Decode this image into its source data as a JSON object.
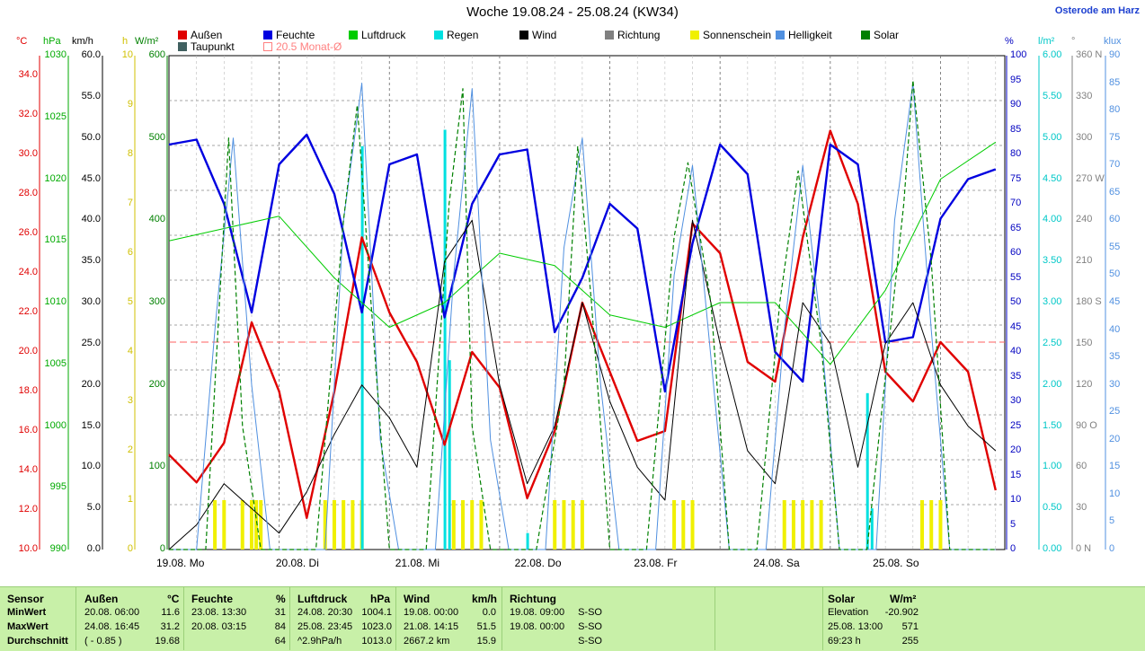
{
  "title": "Woche 19.08.24 - 25.08.24 (KW34)",
  "station": "Osterode am Harz",
  "legend": [
    {
      "label": "Außen",
      "color": "#e00000"
    },
    {
      "label": "Feuchte",
      "color": "#0000e0"
    },
    {
      "label": "Luftdruck",
      "color": "#00cc00"
    },
    {
      "label": "Regen",
      "color": "#00e0e0"
    },
    {
      "label": "Wind",
      "color": "#000000"
    },
    {
      "label": "Richtung",
      "color": "#808080"
    },
    {
      "label": "Sonnenschein",
      "color": "#f0f000"
    },
    {
      "label": "Helligkeit",
      "color": "#5090e0"
    },
    {
      "label": "Solar",
      "color": "#008000"
    },
    {
      "label": "Taupunkt",
      "color": "#406060"
    },
    {
      "label": "20.5 Monat-Ø",
      "color": "#ff8080"
    }
  ],
  "axes_units": {
    "temp": "°C",
    "pressure": "hPa",
    "wind": "km/h",
    "sun": "h",
    "solar": "W/m²",
    "humidity": "%",
    "rain": "l/m²",
    "dir": "°",
    "lux": "klux"
  },
  "axes_ticks": {
    "temp": [
      "34.0",
      "32.0",
      "30.0",
      "28.0",
      "26.0",
      "24.0",
      "22.0",
      "20.0",
      "18.0",
      "16.0",
      "14.0",
      "12.0",
      "10.0"
    ],
    "pressure": [
      "1030",
      "1025",
      "1020",
      "1015",
      "1010",
      "1005",
      "1000",
      "995",
      "990"
    ],
    "wind": [
      "60.0",
      "55.0",
      "50.0",
      "45.0",
      "40.0",
      "35.0",
      "30.0",
      "25.0",
      "20.0",
      "15.0",
      "10.0",
      "5.0",
      "0.0"
    ],
    "sun": [
      "10",
      "9",
      "8",
      "7",
      "6",
      "5",
      "4",
      "3",
      "2",
      "1",
      "0"
    ],
    "solar": [
      "600",
      "500",
      "400",
      "300",
      "200",
      "100",
      "0"
    ],
    "humidity": [
      "100",
      "95",
      "90",
      "85",
      "80",
      "75",
      "70",
      "65",
      "60",
      "55",
      "50",
      "45",
      "40",
      "35",
      "30",
      "25",
      "20",
      "15",
      "10",
      "5",
      "0"
    ],
    "rain": [
      "6.00",
      "5.50",
      "5.00",
      "4.50",
      "4.00",
      "3.50",
      "3.00",
      "2.50",
      "2.00",
      "1.50",
      "1.00",
      "0.50",
      "0.00"
    ],
    "dir": [
      "360 N",
      "330",
      "300",
      "270 W",
      "240",
      "210",
      "180 S",
      "150",
      "120",
      "90 O",
      "60",
      "30",
      "0 N"
    ],
    "lux": [
      "90",
      "85",
      "80",
      "75",
      "70",
      "65",
      "60",
      "55",
      "50",
      "45",
      "40",
      "35",
      "30",
      "25",
      "20",
      "15",
      "10",
      "5",
      "0"
    ]
  },
  "days": [
    "19.08.  Mo",
    "20.08.  Di",
    "21.08.  Mi",
    "22.08.  Do",
    "23.08.  Fr",
    "24.08.  Sa",
    "25.08.  So"
  ],
  "chart_data": {
    "type": "line",
    "title": "Woche 19.08.24 - 25.08.24 (KW34)",
    "x_unit": "hours since 19.08. 00:00",
    "month_avg_temp": 20.5,
    "series": [
      {
        "name": "Außen",
        "axis": "temp",
        "points": [
          [
            0,
            14.8
          ],
          [
            6,
            13.4
          ],
          [
            12,
            15.4
          ],
          [
            18,
            21.5
          ],
          [
            24,
            18.0
          ],
          [
            30,
            11.6
          ],
          [
            36,
            18.0
          ],
          [
            42,
            25.8
          ],
          [
            48,
            22.0
          ],
          [
            54,
            19.5
          ],
          [
            60,
            15.3
          ],
          [
            66,
            20.0
          ],
          [
            72,
            18.2
          ],
          [
            78,
            12.6
          ],
          [
            84,
            16.0
          ],
          [
            90,
            22.5
          ],
          [
            96,
            19.0
          ],
          [
            102,
            15.5
          ],
          [
            108,
            16.0
          ],
          [
            114,
            26.5
          ],
          [
            120,
            25.0
          ],
          [
            126,
            19.5
          ],
          [
            132,
            18.5
          ],
          [
            138,
            25.8
          ],
          [
            144,
            31.2
          ],
          [
            150,
            27.5
          ],
          [
            156,
            19.0
          ],
          [
            162,
            17.5
          ],
          [
            168,
            20.5
          ],
          [
            174,
            19.0
          ],
          [
            180,
            13.0
          ]
        ]
      },
      {
        "name": "Feuchte",
        "axis": "humidity",
        "points": [
          [
            0,
            82
          ],
          [
            6,
            83
          ],
          [
            12,
            70
          ],
          [
            18,
            48
          ],
          [
            24,
            78
          ],
          [
            30,
            84
          ],
          [
            36,
            72
          ],
          [
            42,
            48
          ],
          [
            48,
            78
          ],
          [
            54,
            80
          ],
          [
            60,
            47
          ],
          [
            66,
            70
          ],
          [
            72,
            80
          ],
          [
            78,
            81
          ],
          [
            84,
            44
          ],
          [
            90,
            55
          ],
          [
            96,
            70
          ],
          [
            102,
            65
          ],
          [
            108,
            32
          ],
          [
            114,
            62
          ],
          [
            120,
            82
          ],
          [
            126,
            76
          ],
          [
            132,
            40
          ],
          [
            138,
            34
          ],
          [
            144,
            82
          ],
          [
            150,
            78
          ],
          [
            156,
            42
          ],
          [
            162,
            43
          ],
          [
            168,
            67
          ],
          [
            174,
            75
          ],
          [
            180,
            77
          ]
        ]
      },
      {
        "name": "Luftdruck",
        "axis": "pressure",
        "points": [
          [
            0,
            1015
          ],
          [
            12,
            1016
          ],
          [
            24,
            1017
          ],
          [
            36,
            1012
          ],
          [
            48,
            1008
          ],
          [
            60,
            1010
          ],
          [
            72,
            1014
          ],
          [
            84,
            1013
          ],
          [
            96,
            1009
          ],
          [
            108,
            1008
          ],
          [
            120,
            1010
          ],
          [
            132,
            1010
          ],
          [
            144,
            1005
          ],
          [
            156,
            1011
          ],
          [
            168,
            1020
          ],
          [
            180,
            1023
          ]
        ]
      },
      {
        "name": "Wind",
        "axis": "wind",
        "points": [
          [
            0,
            0
          ],
          [
            6,
            3
          ],
          [
            12,
            8
          ],
          [
            18,
            5
          ],
          [
            24,
            2
          ],
          [
            30,
            7
          ],
          [
            36,
            14
          ],
          [
            42,
            20
          ],
          [
            48,
            16
          ],
          [
            54,
            10
          ],
          [
            60,
            35
          ],
          [
            66,
            40
          ],
          [
            72,
            20
          ],
          [
            78,
            8
          ],
          [
            84,
            15
          ],
          [
            90,
            30
          ],
          [
            96,
            18
          ],
          [
            102,
            10
          ],
          [
            108,
            6
          ],
          [
            114,
            40
          ],
          [
            120,
            25
          ],
          [
            126,
            12
          ],
          [
            132,
            8
          ],
          [
            138,
            30
          ],
          [
            144,
            25
          ],
          [
            150,
            10
          ],
          [
            156,
            25
          ],
          [
            162,
            30
          ],
          [
            168,
            20
          ],
          [
            174,
            15
          ],
          [
            180,
            12
          ]
        ]
      },
      {
        "name": "Helligkeit",
        "axis": "lux",
        "points": [
          [
            0,
            0
          ],
          [
            6,
            0
          ],
          [
            10,
            40
          ],
          [
            14,
            75
          ],
          [
            18,
            30
          ],
          [
            22,
            0
          ],
          [
            34,
            0
          ],
          [
            38,
            60
          ],
          [
            42,
            85
          ],
          [
            46,
            20
          ],
          [
            50,
            0
          ],
          [
            58,
            0
          ],
          [
            62,
            50
          ],
          [
            66,
            84
          ],
          [
            70,
            20
          ],
          [
            74,
            0
          ],
          [
            82,
            0
          ],
          [
            86,
            55
          ],
          [
            90,
            75
          ],
          [
            94,
            30
          ],
          [
            98,
            0
          ],
          [
            106,
            0
          ],
          [
            110,
            50
          ],
          [
            114,
            70
          ],
          [
            118,
            35
          ],
          [
            122,
            0
          ],
          [
            130,
            0
          ],
          [
            134,
            40
          ],
          [
            138,
            70
          ],
          [
            142,
            40
          ],
          [
            146,
            0
          ],
          [
            154,
            0
          ],
          [
            158,
            60
          ],
          [
            162,
            85
          ],
          [
            166,
            40
          ],
          [
            170,
            0
          ],
          [
            180,
            0
          ]
        ]
      },
      {
        "name": "Solar",
        "axis": "solar",
        "points": [
          [
            0,
            0
          ],
          [
            8,
            0
          ],
          [
            13,
            500
          ],
          [
            16,
            150
          ],
          [
            20,
            0
          ],
          [
            32,
            0
          ],
          [
            38,
            400
          ],
          [
            41,
            540
          ],
          [
            44,
            300
          ],
          [
            48,
            0
          ],
          [
            56,
            0
          ],
          [
            61,
            420
          ],
          [
            64,
            560
          ],
          [
            66,
            150
          ],
          [
            70,
            0
          ],
          [
            80,
            0
          ],
          [
            86,
            200
          ],
          [
            89,
            490
          ],
          [
            92,
            300
          ],
          [
            96,
            0
          ],
          [
            104,
            0
          ],
          [
            110,
            380
          ],
          [
            113,
            470
          ],
          [
            118,
            300
          ],
          [
            122,
            0
          ],
          [
            128,
            0
          ],
          [
            133,
            300
          ],
          [
            137,
            460
          ],
          [
            142,
            250
          ],
          [
            146,
            0
          ],
          [
            152,
            0
          ],
          [
            160,
            420
          ],
          [
            162,
            570
          ],
          [
            166,
            350
          ],
          [
            170,
            0
          ],
          [
            180,
            0
          ]
        ]
      }
    ],
    "rain_bars": [
      [
        42,
        4.9
      ],
      [
        60,
        5.1
      ],
      [
        61,
        2.3
      ],
      [
        78,
        0.2
      ],
      [
        152,
        1.9
      ],
      [
        153,
        0.5
      ]
    ],
    "sunshine_bars": [
      [
        10,
        1
      ],
      [
        12,
        1
      ],
      [
        16,
        1
      ],
      [
        18,
        1
      ],
      [
        19,
        1
      ],
      [
        20,
        1
      ],
      [
        34,
        1
      ],
      [
        36,
        1
      ],
      [
        38,
        1
      ],
      [
        40,
        1
      ],
      [
        42,
        1
      ],
      [
        62,
        1
      ],
      [
        64,
        1
      ],
      [
        66,
        1
      ],
      [
        68,
        1
      ],
      [
        84,
        1
      ],
      [
        86,
        1
      ],
      [
        88,
        1
      ],
      [
        90,
        1
      ],
      [
        110,
        1
      ],
      [
        112,
        1
      ],
      [
        114,
        1
      ],
      [
        134,
        1
      ],
      [
        136,
        1
      ],
      [
        138,
        1
      ],
      [
        140,
        1
      ],
      [
        142,
        1
      ],
      [
        164,
        1
      ],
      [
        166,
        1
      ],
      [
        168,
        1
      ]
    ]
  },
  "table": {
    "rows": [
      "Sensor",
      "MinWert",
      "MaxWert",
      "Durchschnitt"
    ],
    "aussen": {
      "head": "Außen",
      "unit": "°C",
      "min": [
        "20.08.  06:00",
        "11.6"
      ],
      "max": [
        "24.08.  16:45",
        "31.2"
      ],
      "avg": [
        "( - 0.85 )",
        "19.68"
      ]
    },
    "feuchte": {
      "head": "Feuchte",
      "unit": "%",
      "min": [
        "23.08.  13:30",
        "31"
      ],
      "max": [
        "20.08.  03:15",
        "84"
      ],
      "avg": [
        "",
        "64"
      ]
    },
    "luftdruck": {
      "head": "Luftdruck",
      "unit": "hPa",
      "min": [
        "24.08.  20:30",
        "1004.1"
      ],
      "max": [
        "25.08.  23:45",
        "1023.0"
      ],
      "avg": [
        "^2.9hPa/h",
        "1013.0"
      ]
    },
    "wind": {
      "head": "Wind",
      "unit": "km/h",
      "min": [
        "19.08.  00:00",
        "0.0"
      ],
      "max": [
        "21.08.  14:15",
        "51.5"
      ],
      "avg": [
        "2667.2 km",
        "15.9"
      ]
    },
    "richtung": {
      "head": "Richtung",
      "min": [
        "19.08.  09:00",
        "S-SO"
      ],
      "max": [
        "19.08.  00:00",
        "S-SO"
      ],
      "avg": [
        "",
        "S-SO"
      ]
    },
    "solar": {
      "head": "Solar",
      "unit": "W/m²",
      "min": [
        "Elevation",
        "-20.902"
      ],
      "max": [
        "25.08.  13:00",
        "571"
      ],
      "avg": [
        "69:23 h",
        "255"
      ]
    }
  }
}
